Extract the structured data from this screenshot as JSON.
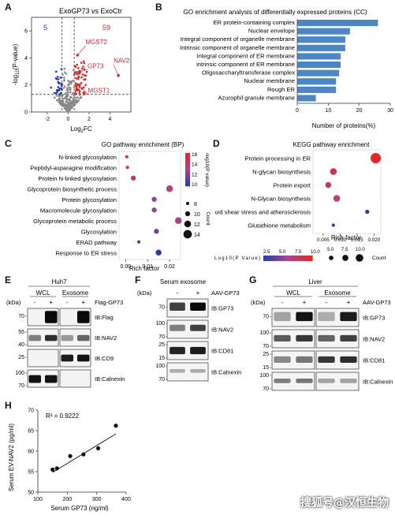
{
  "figure": {
    "panel_labels": [
      "A",
      "B",
      "C",
      "D",
      "E",
      "F",
      "G",
      "H"
    ]
  },
  "chart_data": [
    {
      "id": "A",
      "type": "scatter",
      "title": "ExoGP73 vs ExoCtr",
      "xlabel": "Log2FC",
      "ylabel": "-log10(P-value)",
      "xlim": [
        -3.5,
        6
      ],
      "ylim": [
        0,
        7
      ],
      "xticks": [
        -2,
        0,
        2,
        4
      ],
      "yticks": [
        0,
        2,
        4,
        6
      ],
      "down_count": "5",
      "up_count": "59",
      "colors": {
        "up": "#d62728",
        "down": "#1f3fa8",
        "ns": "#888888"
      },
      "labeled_points": [
        {
          "label": "MGST2",
          "x": 0.9,
          "y": 4.2
        },
        {
          "label": "GP73",
          "x": 1.1,
          "y": 3.0
        },
        {
          "label": "NAV2",
          "x": 4.8,
          "y": 2.7
        },
        {
          "label": "MGST1",
          "x": 1.0,
          "y": 2.0
        }
      ]
    },
    {
      "id": "B",
      "type": "bar",
      "title": "GO enrichment analysis of differentially expressed proteins (CC)",
      "xlabel": "Number of proteins(%)",
      "xlim": [
        0,
        30
      ],
      "xticks": [
        0,
        10,
        20,
        30
      ],
      "categories": [
        "ER protein-containing complex",
        "Nuclear envelope",
        "Integral component of organelle membrane",
        "Intrinsic component of organelle membrane",
        "Integral component of ER membrane",
        "intrinsic component of ER membrane",
        "Oligosaccharyltransferase complex",
        "Nuclear membrane",
        "Rough ER",
        "Azurophil granule membrane"
      ],
      "values": [
        26,
        17,
        15.5,
        15.5,
        14,
        14,
        13.5,
        12.5,
        12.5,
        6
      ],
      "color": "#4a86c8"
    },
    {
      "id": "C",
      "type": "scatter",
      "title": "GO pathway enrichment (BP)",
      "xlabel": "Rich factor",
      "xticks": [
        "0.00",
        "0.01",
        "0.02"
      ],
      "xlim": [
        -0.003,
        0.025
      ],
      "categories": [
        "N-linked glycosylation",
        "Peptidyl-asparagine modification",
        "Protein N-linked glycosylation",
        "Glycoprotein biosynthetic process",
        "Protein glycosylation",
        "Macromolecule glycosylation",
        "Glycoprotein metabolic process",
        "Glycosylation",
        "ERAD pathway",
        "Response to ER stress"
      ],
      "points": [
        {
          "x": 0.0005,
          "logp": 15.5,
          "count": 8
        },
        {
          "x": 0.0008,
          "logp": 15.5,
          "count": 8
        },
        {
          "x": 0.0035,
          "logp": 15.0,
          "count": 10
        },
        {
          "x": 0.02,
          "logp": 13.0,
          "count": 12
        },
        {
          "x": 0.013,
          "logp": 12.0,
          "count": 10
        },
        {
          "x": 0.013,
          "logp": 12.0,
          "count": 10
        },
        {
          "x": 0.024,
          "logp": 12.5,
          "count": 12
        },
        {
          "x": 0.014,
          "logp": 11.0,
          "count": 10
        },
        {
          "x": 0.006,
          "logp": 9.5,
          "count": 8
        },
        {
          "x": 0.015,
          "logp": 9.0,
          "count": 11
        }
      ],
      "colorbar_label": "-log10(P value)",
      "colorbar_ticks": [
        "16",
        "14",
        "12",
        "10"
      ],
      "size_legend_title": "Count",
      "size_legend": [
        "8",
        "10",
        "12",
        "14"
      ]
    },
    {
      "id": "D",
      "type": "scatter",
      "title": "KEGG pathway enrichment",
      "xlabel": "Rich factor",
      "xticks": [
        "0.005",
        "0.010",
        "0.015",
        "0.020"
      ],
      "xlim": [
        0.002,
        0.022
      ],
      "categories": [
        "Protein processing in ER",
        "N-glycan biosynthesis",
        "Protein export",
        "N-Glycan biosynthesis",
        "Fluid shear stress and atherosclerosis",
        "Glutathione metabolism"
      ],
      "points": [
        {
          "x": 0.0205,
          "logp": 10.0,
          "count": 10
        },
        {
          "x": 0.008,
          "logp": 8.5,
          "count": 6
        },
        {
          "x": 0.0065,
          "logp": 8.0,
          "count": 5
        },
        {
          "x": 0.009,
          "logp": 7.0,
          "count": 6
        },
        {
          "x": 0.018,
          "logp": 2.5,
          "count": 3
        },
        {
          "x": 0.008,
          "logp": 2.5,
          "count": 2
        }
      ],
      "colorbar_label": "Log10(P Value)",
      "colorbar_ticks": [
        "2.5",
        "5.0",
        "7.5",
        "10.0"
      ],
      "size_legend_title": "Count",
      "size_legend": [
        "5.0",
        "7.5",
        "10.0"
      ]
    },
    {
      "id": "H",
      "type": "scatter",
      "xlabel": "Serum GP73 (ng/ml)",
      "ylabel": "Serum EV-NAV2 (pg/ml)",
      "annotation": "R² = 0.9222",
      "xlim": [
        100,
        400
      ],
      "ylim": [
        50,
        70
      ],
      "xticks": [
        100,
        200,
        300,
        400
      ],
      "yticks": [
        50,
        55,
        60,
        65,
        70
      ],
      "x": [
        150,
        165,
        210,
        255,
        305,
        365
      ],
      "y": [
        55.5,
        55.8,
        58.8,
        59.2,
        60.7,
        66.2
      ],
      "fit_line": {
        "x": [
          150,
          365
        ],
        "y": [
          54.8,
          64.2
        ]
      }
    }
  ],
  "blots": {
    "E": {
      "title": "Huh7",
      "groups": [
        "WCL",
        "Exosome"
      ],
      "signs": [
        "-",
        "+",
        "-",
        "+"
      ],
      "treatment": "Flag-GP73",
      "kda_label": "(kDa)",
      "rows": [
        {
          "ladder": [
            "70"
          ],
          "label": "IB:Flag"
        },
        {
          "ladder": [
            "55",
            "40"
          ],
          "label": "IB:NAV2"
        },
        {
          "ladder": [
            "25"
          ],
          "label": "IB:CD9"
        },
        {
          "ladder": [
            "100",
            "70"
          ],
          "label": "IB:Calnexin"
        }
      ]
    },
    "F": {
      "title": "Serum exosome",
      "signs": [
        "-",
        "+"
      ],
      "treatment": "AAV-GP73",
      "kda_label": "(kDa)",
      "rows": [
        {
          "ladder": [
            "70"
          ],
          "label": "IB:GP73"
        },
        {
          "ladder": [
            "100",
            "70"
          ],
          "label": "IB:NAV2"
        },
        {
          "ladder": [
            "25",
            "15"
          ],
          "label": "IB:CD81"
        },
        {
          "ladder": [
            "100",
            "70"
          ],
          "label": "IB:Calnexin"
        }
      ]
    },
    "G": {
      "title": "Liver",
      "groups": [
        "WCL",
        "Exosome"
      ],
      "signs": [
        "-",
        "+",
        "-",
        "+"
      ],
      "treatment": "AAV-GP73",
      "kda_label": "(kDa)",
      "rows": [
        {
          "ladder": [
            "70"
          ],
          "label": "IB:GP73"
        },
        {
          "ladder": [
            "100",
            "70"
          ],
          "label": "IB:NAV2"
        },
        {
          "ladder": [
            "25",
            "15"
          ],
          "label": "IB:CD81"
        },
        {
          "ladder": [
            "100",
            "70"
          ],
          "label": "IB:Calnexin"
        }
      ]
    }
  },
  "watermark": "搜狐号@汉恒生物"
}
